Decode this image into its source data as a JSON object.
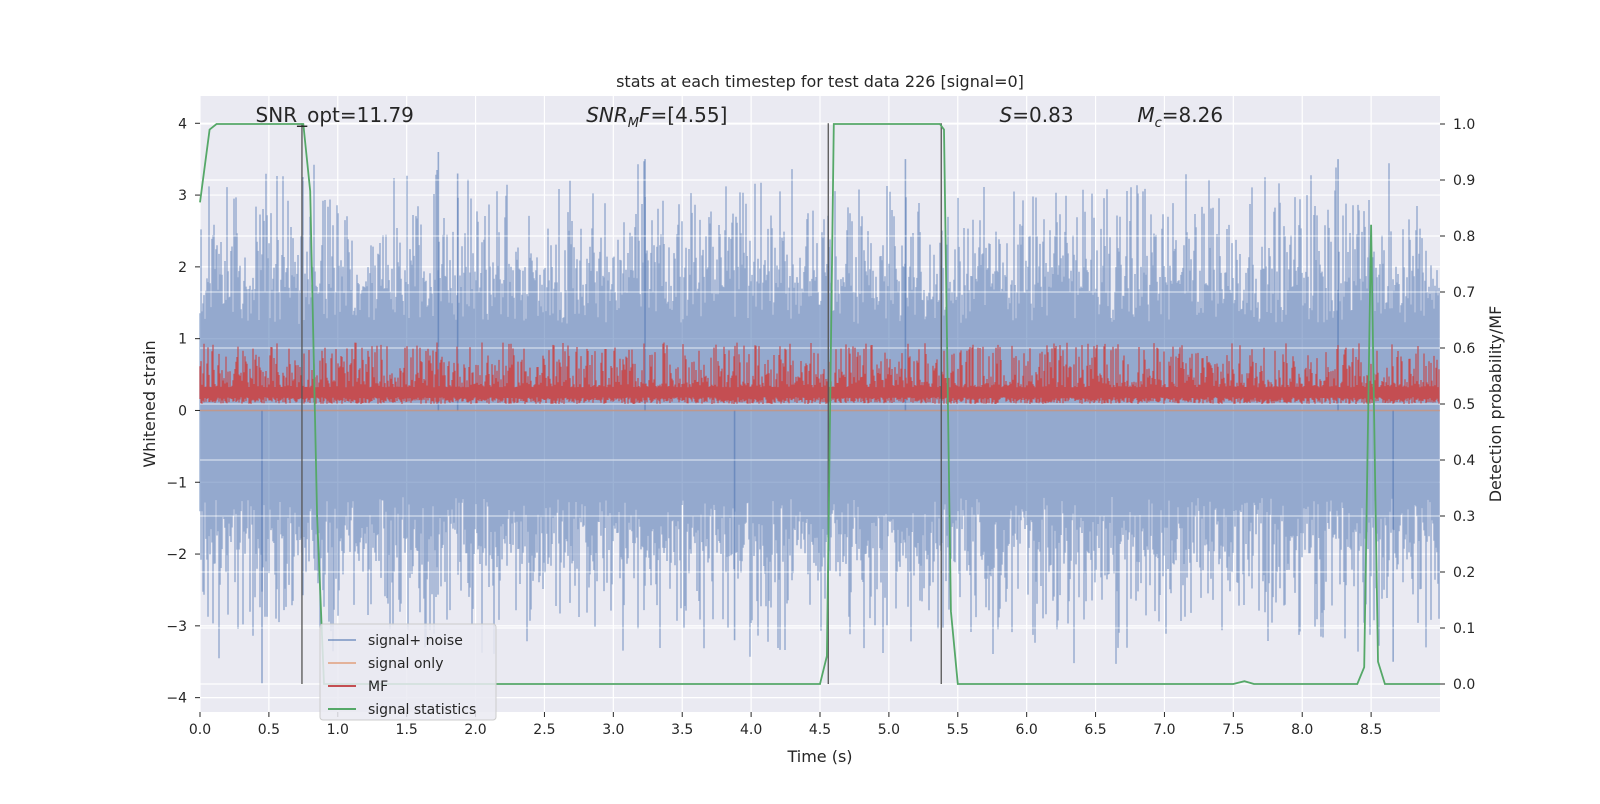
{
  "chart_data": {
    "type": "line",
    "title": "stats at each timestep for test data 226 [signal=0]",
    "xlabel": "Time (s)",
    "ylabel_left": "Whitened strain",
    "ylabel_right": "Detection probability/MF",
    "xlim": [
      0,
      9.0
    ],
    "ylim_left": [
      -4.2,
      4.38
    ],
    "ylim_right": [
      -0.05,
      1.05
    ],
    "x_ticks": [
      0.0,
      0.5,
      1.0,
      1.5,
      2.0,
      2.5,
      3.0,
      3.5,
      4.0,
      4.5,
      5.0,
      5.5,
      6.0,
      6.5,
      7.0,
      7.5,
      8.0,
      8.5
    ],
    "y_ticks_left": [
      4,
      3,
      2,
      1,
      0,
      -1,
      -2,
      -3,
      -4
    ],
    "y_ticks_right": [
      1.0,
      0.9,
      0.8,
      0.7,
      0.6,
      0.5,
      0.4,
      0.3,
      0.2,
      0.1,
      0.0
    ],
    "grid": true,
    "legend_position": "lower-left",
    "annotations": [
      {
        "html": "SNR_opt=11.79",
        "x": 0.2,
        "y": 4.1
      },
      {
        "html": "<tspan font-style=\"italic\">SNR</tspan><tspan font-style=\"italic\" font-size=\"13\" dy=\"5\">M</tspan><tspan font-style=\"italic\" dy=\"-5\">F</tspan>=[4.55]",
        "x": 2.6,
        "y": 4.1
      },
      {
        "html": "<tspan font-style=\"italic\">S</tspan>=0.83",
        "x": 5.6,
        "y": 4.1
      },
      {
        "html": "<tspan font-style=\"italic\">M</tspan><tspan font-style=\"italic\" font-size=\"13\" dy=\"5\">c</tspan><tspan dy=\"-5\">=8.26</tspan>",
        "x": 6.6,
        "y": 4.1
      }
    ],
    "vertical_lines": [
      0.74,
      4.56,
      5.38
    ],
    "series": [
      {
        "name": "signal+ noise",
        "axis": "left",
        "color": "#4c72b0",
        "opacity": 0.55,
        "render": "dense_band",
        "description_range": [
          -3.8,
          3.7
        ],
        "peaks": [
          {
            "x": 1.73,
            "y": 3.6
          },
          {
            "x": 1.87,
            "y": 3.3
          },
          {
            "x": 3.23,
            "y": 3.5
          },
          {
            "x": 5.12,
            "y": 3.5
          },
          {
            "x": 8.26,
            "y": 3.5
          },
          {
            "x": 0.45,
            "y": -3.8
          },
          {
            "x": 3.88,
            "y": -3.2
          },
          {
            "x": 8.66,
            "y": -3.5
          }
        ]
      },
      {
        "name": "signal only",
        "axis": "left",
        "color": "#dd8452",
        "opacity": 0.55,
        "x": [
          0,
          9.0
        ],
        "y": [
          0,
          0
        ]
      },
      {
        "name": "MF",
        "axis": "right",
        "color": "#c44e52",
        "render": "dense_band",
        "description_range": [
          0.5,
          0.6
        ]
      },
      {
        "name": "signal statistics",
        "axis": "right",
        "color": "#55a868",
        "x": [
          0.0,
          0.07,
          0.12,
          0.2,
          0.3,
          0.4,
          0.5,
          0.6,
          0.7,
          0.75,
          0.8,
          0.85,
          0.9,
          0.95,
          1.0,
          1.5,
          2.0,
          2.5,
          3.0,
          3.5,
          4.0,
          4.5,
          4.55,
          4.6,
          4.65,
          5.0,
          5.3,
          5.37,
          5.4,
          5.45,
          5.5,
          5.6,
          6.0,
          6.5,
          7.0,
          7.5,
          7.58,
          7.65,
          8.0,
          8.4,
          8.45,
          8.5,
          8.55,
          8.6,
          8.65,
          9.0
        ],
        "y": [
          0.86,
          0.99,
          1.0,
          1.0,
          1.0,
          1.0,
          1.0,
          1.0,
          1.0,
          1.0,
          0.88,
          0.3,
          0.0,
          0.0,
          0.0,
          0.0,
          0.0,
          0.0,
          0.0,
          0.0,
          0.0,
          0.0,
          0.05,
          1.0,
          1.0,
          1.0,
          1.0,
          1.0,
          0.99,
          0.13,
          0.0,
          0.0,
          0.0,
          0.0,
          0.0,
          0.0,
          0.005,
          0.0,
          0.0,
          0.0,
          0.03,
          0.82,
          0.04,
          0.0,
          0.0,
          0.0
        ]
      }
    ],
    "legend": [
      "signal+ noise",
      "signal only",
      "MF",
      "signal statistics"
    ]
  }
}
